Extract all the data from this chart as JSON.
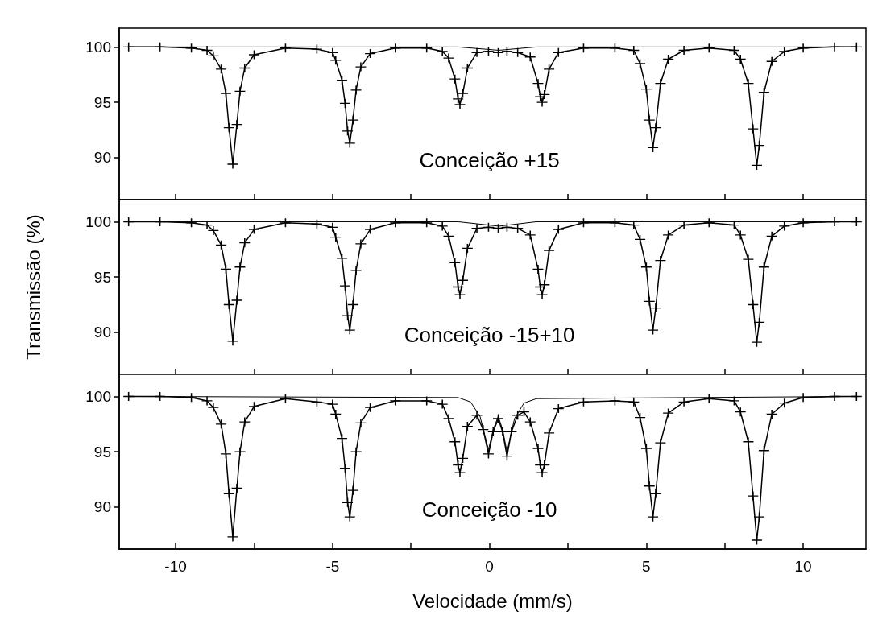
{
  "chart_data": [
    {
      "type": "line",
      "annotations": [
        "Conceição +15"
      ],
      "xlim": [
        -11.8,
        12
      ],
      "ylim": [
        86.2,
        101.7
      ],
      "tick_labels": "y",
      "marker": "cross",
      "line_style": "solid",
      "xticks": [
        -10,
        {
          "value": -7.5,
          "label": null
        },
        -5,
        {
          "value": -2.5,
          "label": null
        },
        0,
        {
          "value": 2.5,
          "label": null
        },
        5,
        {
          "value": 7.5,
          "label": null
        },
        10
      ],
      "yticks": [
        90,
        95,
        100
      ],
      "series": [
        {
          "color": "#000000",
          "x": [
            -11.5,
            -10.5,
            -9.5,
            -9,
            -8.8,
            -8.55,
            -8.4,
            -8.3,
            -8.18,
            -8.05,
            -7.95,
            -7.8,
            -7.5,
            -6.5,
            -5.5,
            -5.0,
            -4.9,
            -4.7,
            -4.6,
            -4.52,
            -4.45,
            -4.35,
            -4.25,
            -4.1,
            -3.8,
            -3,
            -2,
            -1.5,
            -1.3,
            -1.1,
            -1.0,
            -0.94,
            -0.85,
            -0.7,
            -0.4,
            -0.03,
            0.28,
            0.56,
            0.9,
            1.3,
            1.55,
            1.62,
            1.68,
            1.75,
            1.9,
            2.2,
            3,
            4,
            4.6,
            4.8,
            5.0,
            5.1,
            5.21,
            5.3,
            5.45,
            5.7,
            6.2,
            7,
            7.8,
            8.0,
            8.25,
            8.4,
            8.52,
            8.6,
            8.75,
            9.0,
            9.4,
            10,
            11,
            11.7
          ],
          "values": [
            100.0,
            100.0,
            99.9,
            99.7,
            99.2,
            98.0,
            95.8,
            92.7,
            89.4,
            93.0,
            96.0,
            98.1,
            99.3,
            99.9,
            99.8,
            99.5,
            98.8,
            97.0,
            94.9,
            92.4,
            91.3,
            93.4,
            96.1,
            98.2,
            99.4,
            99.9,
            99.9,
            99.6,
            99.0,
            97.1,
            95.3,
            94.8,
            95.8,
            98.1,
            99.5,
            99.6,
            99.5,
            99.6,
            99.5,
            99.1,
            96.7,
            95.5,
            95.0,
            95.7,
            98.0,
            99.5,
            99.9,
            99.9,
            99.7,
            98.5,
            96.2,
            93.4,
            90.9,
            92.7,
            96.7,
            98.9,
            99.7,
            99.9,
            99.7,
            98.9,
            96.7,
            92.6,
            89.3,
            91.1,
            95.9,
            98.7,
            99.6,
            99.9,
            100.0,
            100.0
          ]
        },
        {
          "color": "#000000",
          "marker": "none",
          "x": [
            -11.5,
            -1,
            0.3,
            1.5,
            11.7
          ],
          "values": [
            100,
            100,
            99.7,
            100,
            100
          ]
        }
      ]
    },
    {
      "type": "line",
      "ylabel": "Transmissão (%)",
      "annotations": [
        "Conceição -15+10"
      ],
      "xlim": [
        -11.8,
        12
      ],
      "ylim": [
        86.2,
        102
      ],
      "tick_labels": "y",
      "marker": "cross",
      "line_style": "solid",
      "xticks": [
        -10,
        {
          "value": -7.5,
          "label": null
        },
        -5,
        {
          "value": -2.5,
          "label": null
        },
        0,
        {
          "value": 2.5,
          "label": null
        },
        5,
        {
          "value": 7.5,
          "label": null
        },
        10
      ],
      "yticks": [
        90,
        95,
        100
      ],
      "series": [
        {
          "color": "#000000",
          "x": [
            -11.5,
            -10.5,
            -9.5,
            -9,
            -8.8,
            -8.55,
            -8.4,
            -8.3,
            -8.18,
            -8.05,
            -7.95,
            -7.8,
            -7.5,
            -6.5,
            -5.5,
            -5.0,
            -4.9,
            -4.7,
            -4.6,
            -4.52,
            -4.45,
            -4.35,
            -4.25,
            -4.1,
            -3.8,
            -3,
            -2,
            -1.5,
            -1.3,
            -1.1,
            -1.0,
            -0.94,
            -0.85,
            -0.7,
            -0.4,
            -0.03,
            0.28,
            0.56,
            0.9,
            1.3,
            1.55,
            1.62,
            1.68,
            1.75,
            1.9,
            2.2,
            3,
            4,
            4.6,
            4.8,
            5.0,
            5.1,
            5.21,
            5.3,
            5.45,
            5.7,
            6.2,
            7,
            7.8,
            8.0,
            8.25,
            8.4,
            8.52,
            8.6,
            8.75,
            9.0,
            9.4,
            10,
            11,
            11.7
          ],
          "values": [
            100.0,
            100.0,
            99.9,
            99.7,
            99.2,
            97.9,
            95.7,
            92.5,
            89.2,
            92.9,
            95.9,
            98.1,
            99.3,
            99.9,
            99.8,
            99.5,
            98.6,
            96.7,
            94.2,
            91.5,
            90.2,
            92.5,
            95.6,
            98.0,
            99.3,
            99.9,
            99.9,
            99.6,
            98.7,
            96.3,
            94.1,
            93.4,
            94.7,
            97.6,
            99.4,
            99.5,
            99.4,
            99.5,
            99.4,
            98.8,
            95.7,
            94.1,
            93.4,
            94.3,
            97.4,
            99.3,
            99.9,
            99.9,
            99.7,
            98.4,
            95.9,
            92.8,
            90.2,
            92.2,
            96.5,
            98.8,
            99.7,
            99.9,
            99.7,
            98.8,
            96.6,
            92.5,
            89.1,
            90.9,
            95.9,
            98.7,
            99.6,
            99.9,
            100.0,
            100.0
          ]
        },
        {
          "color": "#000000",
          "marker": "none",
          "x": [
            -11.5,
            -1,
            0.3,
            1.5,
            11.7
          ],
          "values": [
            100,
            100,
            99.6,
            100,
            100
          ]
        }
      ]
    },
    {
      "type": "line",
      "xlabel": "Velocidade (mm/s)",
      "annotations": [
        "Conceição -10"
      ],
      "xlim": [
        -11.8,
        12
      ],
      "ylim": [
        86.2,
        102
      ],
      "marker": "cross",
      "line_style": "solid",
      "xticks": [
        -10,
        {
          "value": -7.5,
          "label": null
        },
        -5,
        {
          "value": -2.5,
          "label": null
        },
        0,
        {
          "value": 2.5,
          "label": null
        },
        5,
        {
          "value": 7.5,
          "label": null
        },
        10
      ],
      "yticks": [
        90,
        95,
        100
      ],
      "series": [
        {
          "color": "#000000",
          "x": [
            -11.5,
            -10.5,
            -9.5,
            -9,
            -8.8,
            -8.55,
            -8.4,
            -8.3,
            -8.18,
            -8.05,
            -7.95,
            -7.8,
            -7.5,
            -6.5,
            -5.5,
            -5.0,
            -4.9,
            -4.7,
            -4.6,
            -4.52,
            -4.45,
            -4.35,
            -4.25,
            -4.1,
            -3.8,
            -3,
            -2,
            -1.5,
            -1.3,
            -1.1,
            -1.0,
            -0.94,
            -0.85,
            -0.7,
            -0.4,
            -0.2,
            -0.03,
            0.12,
            0.28,
            0.42,
            0.56,
            0.7,
            0.9,
            1.1,
            1.3,
            1.55,
            1.62,
            1.68,
            1.75,
            1.9,
            2.2,
            3,
            4,
            4.6,
            4.8,
            5.0,
            5.1,
            5.21,
            5.3,
            5.45,
            5.7,
            6.2,
            7,
            7.8,
            8.0,
            8.25,
            8.4,
            8.52,
            8.6,
            8.75,
            9.0,
            9.4,
            10,
            11,
            11.7
          ],
          "values": [
            100.0,
            100.0,
            99.9,
            99.6,
            99.0,
            97.5,
            94.8,
            91.2,
            87.3,
            91.7,
            95.0,
            97.7,
            99.1,
            99.8,
            99.5,
            99.3,
            98.4,
            96.2,
            93.5,
            90.4,
            89.1,
            91.5,
            95.0,
            97.6,
            99.0,
            99.6,
            99.6,
            99.3,
            98.0,
            95.9,
            93.8,
            93.1,
            94.4,
            97.3,
            98.3,
            97.0,
            94.8,
            96.8,
            98.0,
            96.8,
            94.6,
            96.8,
            98.3,
            98.6,
            97.7,
            95.3,
            93.8,
            93.1,
            93.8,
            96.7,
            98.9,
            99.5,
            99.6,
            99.5,
            98.1,
            95.3,
            91.9,
            89.1,
            91.2,
            95.8,
            98.5,
            99.5,
            99.8,
            99.6,
            98.6,
            95.9,
            91.0,
            87.0,
            89.1,
            95.1,
            98.4,
            99.4,
            99.9,
            100.0,
            100.0
          ]
        },
        {
          "color": "#000000",
          "marker": "none",
          "x": [
            -11.5,
            -1.0,
            -0.6,
            -0.3,
            -0.03,
            0.12,
            0.28,
            0.42,
            0.56,
            0.8,
            1.1,
            1.5,
            11.7
          ],
          "values": [
            100,
            99.9,
            99.5,
            98.2,
            95.2,
            97.0,
            98.2,
            97.0,
            95.0,
            98.0,
            99.4,
            99.8,
            100
          ]
        }
      ]
    }
  ]
}
